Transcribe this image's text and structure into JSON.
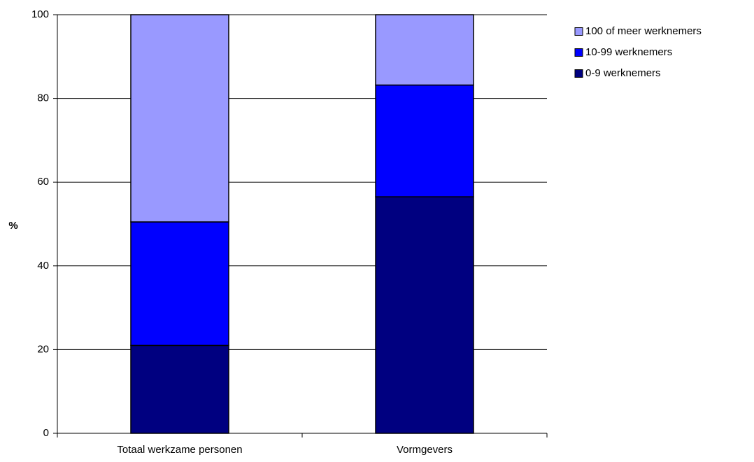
{
  "chart_data": {
    "type": "bar",
    "stacked": true,
    "title": "",
    "xlabel": "",
    "ylabel": "%",
    "ylim": [
      0,
      100
    ],
    "yticks": [
      0,
      20,
      40,
      60,
      80,
      100
    ],
    "grid": true,
    "legend_position": "top-right",
    "categories": [
      "Totaal werkzame personen",
      "Vormgevers"
    ],
    "series": [
      {
        "name": "0-9 werknemers",
        "values": [
          21,
          56.5
        ],
        "color": "#000080"
      },
      {
        "name": "10-99 werknemers",
        "values": [
          29.5,
          26.7
        ],
        "color": "#0000FF"
      },
      {
        "name": "100 of meer werknemers",
        "values": [
          49.5,
          16.8
        ],
        "color": "#9999FF"
      }
    ]
  }
}
